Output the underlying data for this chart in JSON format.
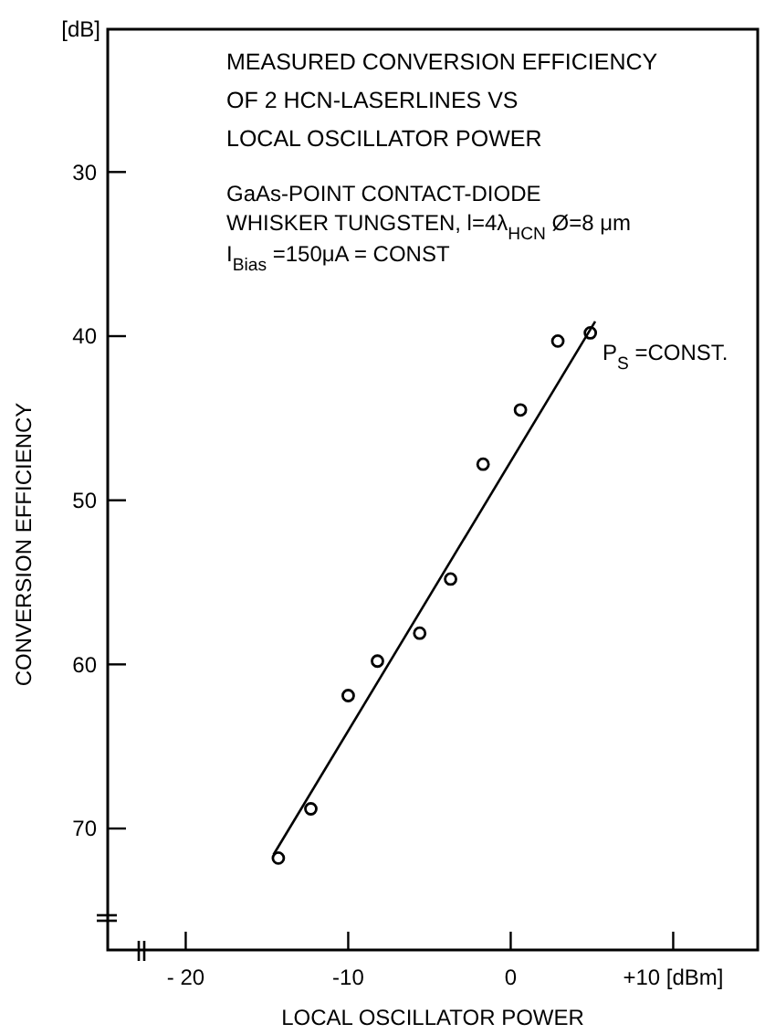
{
  "chart_data": {
    "type": "scatter",
    "title": "MEASURED CONVERSION EFFICIENCY\nOF 2 HCN-LASERLINES  VS\nLOCAL OSCILLATOR POWER",
    "xlabel": "LOCAL OSCILLATOR POWER",
    "ylabel": "CONVERSION EFFICIENCY",
    "annotations": [
      "[dB]",
      "GaAs-POINT CONTACT-DIODE",
      "WHISKER TUNGSTEN, l=4λ$_{HCN}$ Ø=8 μm",
      "I$_{Bias}$ =150μA = CONST",
      "P$_{S}$ =CONST."
    ],
    "xlim": [
      -24.8,
      15.2
    ],
    "ylim": [
      77.4,
      21.3
    ],
    "xticks": [
      {
        "value": -20,
        "label": "- 20"
      },
      -10,
      0,
      {
        "value": 10,
        "label": "+10 [dBm]"
      }
    ],
    "yticks": [
      30,
      40,
      50,
      60,
      70
    ],
    "grid": false,
    "series": [
      {
        "color": "#000000",
        "marker": "circle",
        "x": [
          -14.3,
          -12.3,
          -10.0,
          -8.2,
          -5.6,
          -3.7,
          -1.7,
          0.6,
          2.9,
          4.9
        ],
        "values": [
          71.8,
          68.8,
          61.9,
          59.8,
          58.1,
          54.8,
          47.8,
          44.5,
          40.3,
          39.8
        ]
      },
      {
        "type": "line",
        "color": "#000000",
        "line_style": "solid",
        "x": [
          -14.6,
          5.2
        ],
        "values": [
          71.6,
          39.1
        ]
      }
    ]
  }
}
